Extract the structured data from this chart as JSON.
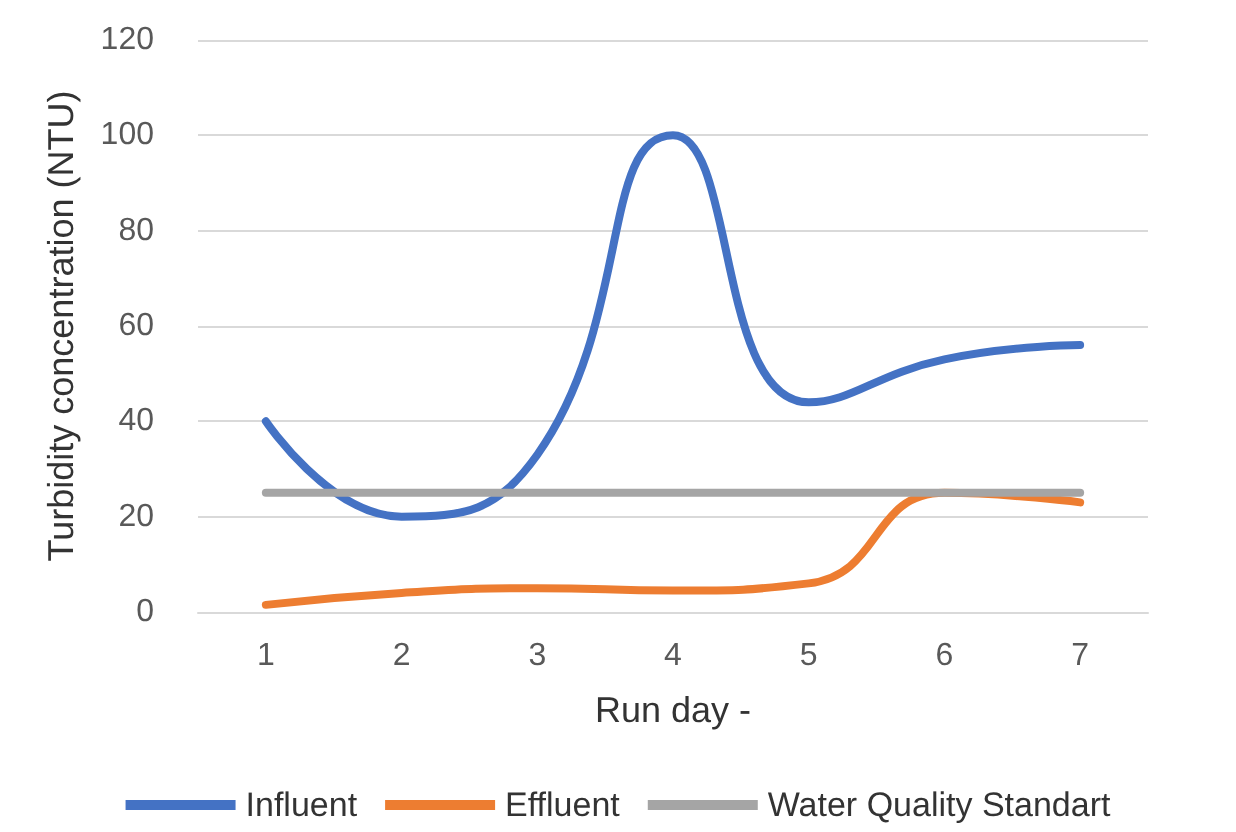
{
  "chart_data": {
    "type": "line",
    "xlabel": "Run day -",
    "ylabel": "Turbidity concentration (NTU)",
    "categories": [
      "1",
      "2",
      "3",
      "4",
      "5",
      "6",
      "7"
    ],
    "series": [
      {
        "name": "Influent",
        "color": "#4472c4",
        "values": [
          40,
          20,
          33,
          100,
          44,
          53,
          56
        ]
      },
      {
        "name": "Effluent",
        "color": "#ed7d31",
        "values": [
          1.5,
          4,
          5,
          4.5,
          6,
          25,
          23
        ]
      },
      {
        "name": "Water Quality Standart",
        "color": "#a5a5a5",
        "values": [
          25,
          25,
          25,
          25,
          25,
          25,
          25
        ]
      }
    ],
    "ylim": [
      0,
      120
    ],
    "yticks": [
      0,
      20,
      40,
      60,
      80,
      100,
      120
    ],
    "grid": "y",
    "legend": "bottom",
    "marker": "none",
    "line_style": "solid"
  }
}
